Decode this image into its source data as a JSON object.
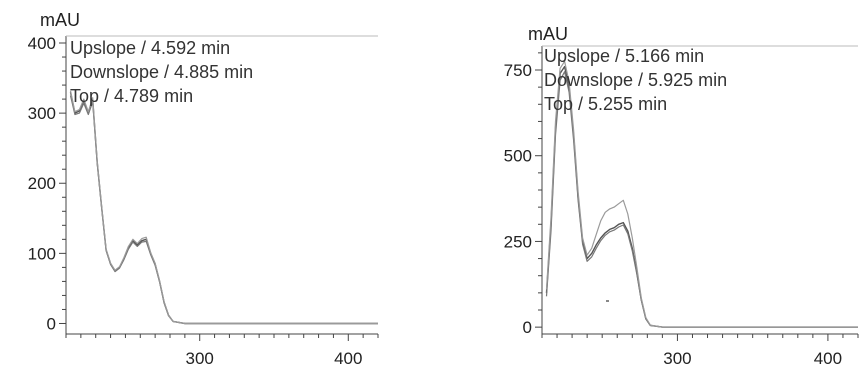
{
  "chart_data": [
    {
      "type": "line",
      "ylabel": "mAU",
      "xlim": [
        210,
        420
      ],
      "ylim": [
        -15,
        410
      ],
      "xticks": [
        300,
        400
      ],
      "yticks": [
        0,
        100,
        200,
        300,
        400
      ],
      "grid": false,
      "legend": [
        "Upslope / 4.592 min",
        "Downslope / 4.885 min",
        "Top / 4.789 min"
      ],
      "series": [
        {
          "name": "Upslope / 4.592 min",
          "x": [
            213,
            216,
            219,
            222,
            225,
            228,
            231,
            234,
            237,
            240,
            243,
            246,
            249,
            252,
            255,
            258,
            261,
            264,
            267,
            270,
            273,
            276,
            279,
            282,
            290,
            300,
            340,
            380,
            420
          ],
          "y": [
            330,
            300,
            303,
            318,
            300,
            319,
            230,
            165,
            105,
            85,
            75,
            80,
            92,
            108,
            118,
            112,
            118,
            120,
            100,
            85,
            60,
            30,
            12,
            3,
            0,
            0,
            0,
            0,
            0
          ]
        },
        {
          "name": "Downslope / 4.885 min",
          "x": [
            213,
            216,
            219,
            222,
            225,
            228,
            231,
            234,
            237,
            240,
            243,
            246,
            249,
            252,
            255,
            258,
            261,
            264,
            267,
            270,
            273,
            276,
            279,
            282,
            290,
            300,
            340,
            380,
            420
          ],
          "y": [
            325,
            298,
            300,
            314,
            298,
            316,
            228,
            164,
            104,
            84,
            74,
            79,
            91,
            106,
            116,
            110,
            116,
            117,
            98,
            83,
            59,
            29,
            11,
            3,
            0,
            0,
            0,
            0,
            0
          ]
        },
        {
          "name": "Top / 4.789 min",
          "x": [
            213,
            216,
            219,
            222,
            225,
            228,
            231,
            234,
            237,
            240,
            243,
            246,
            249,
            252,
            255,
            258,
            261,
            264,
            267,
            270,
            273,
            276,
            279,
            282,
            290,
            300,
            340,
            380,
            420
          ],
          "y": [
            332,
            302,
            305,
            320,
            302,
            322,
            232,
            166,
            106,
            86,
            76,
            81,
            94,
            110,
            120,
            114,
            121,
            123,
            101,
            86,
            61,
            31,
            12,
            3,
            0,
            0,
            0,
            0,
            0
          ]
        }
      ]
    },
    {
      "type": "line",
      "ylabel": "mAU",
      "xlim": [
        210,
        420
      ],
      "ylim": [
        -20,
        820
      ],
      "xticks": [
        300,
        400
      ],
      "yticks": [
        0,
        250,
        500,
        750
      ],
      "grid": false,
      "legend": [
        "Upslope / 5.166 min",
        "Downslope / 5.925 min",
        "Top / 5.255 min"
      ],
      "series": [
        {
          "name": "Upslope / 5.166 min",
          "x": [
            213,
            216,
            219,
            222,
            225,
            228,
            231,
            234,
            237,
            240,
            243,
            246,
            249,
            252,
            255,
            258,
            261,
            264,
            267,
            270,
            273,
            276,
            279,
            282,
            290,
            300,
            340,
            380,
            420
          ],
          "y": [
            100,
            300,
            580,
            740,
            760,
            700,
            560,
            380,
            250,
            200,
            215,
            240,
            260,
            275,
            285,
            290,
            300,
            305,
            280,
            230,
            160,
            80,
            25,
            5,
            0,
            0,
            0,
            0,
            0
          ]
        },
        {
          "name": "Downslope / 5.925 min",
          "x": [
            213,
            216,
            219,
            222,
            225,
            228,
            231,
            234,
            237,
            240,
            243,
            246,
            249,
            252,
            255,
            258,
            261,
            264,
            267,
            270,
            273,
            276,
            279,
            282,
            290,
            300,
            340,
            380,
            420
          ],
          "y": [
            90,
            280,
            560,
            720,
            745,
            685,
            545,
            370,
            242,
            192,
            205,
            230,
            252,
            268,
            278,
            283,
            292,
            298,
            272,
            222,
            155,
            78,
            24,
            5,
            0,
            0,
            0,
            0,
            0
          ]
        },
        {
          "name": "Top / 5.255 min",
          "x": [
            213,
            216,
            219,
            222,
            225,
            228,
            231,
            234,
            237,
            240,
            243,
            246,
            249,
            252,
            255,
            258,
            261,
            264,
            267,
            270,
            273,
            276,
            279,
            282,
            290,
            300,
            340,
            380,
            420
          ],
          "y": [
            110,
            320,
            600,
            755,
            775,
            715,
            575,
            395,
            260,
            210,
            230,
            270,
            310,
            335,
            345,
            350,
            360,
            370,
            330,
            260,
            175,
            85,
            28,
            6,
            0,
            0,
            0,
            0,
            0
          ]
        }
      ]
    }
  ]
}
